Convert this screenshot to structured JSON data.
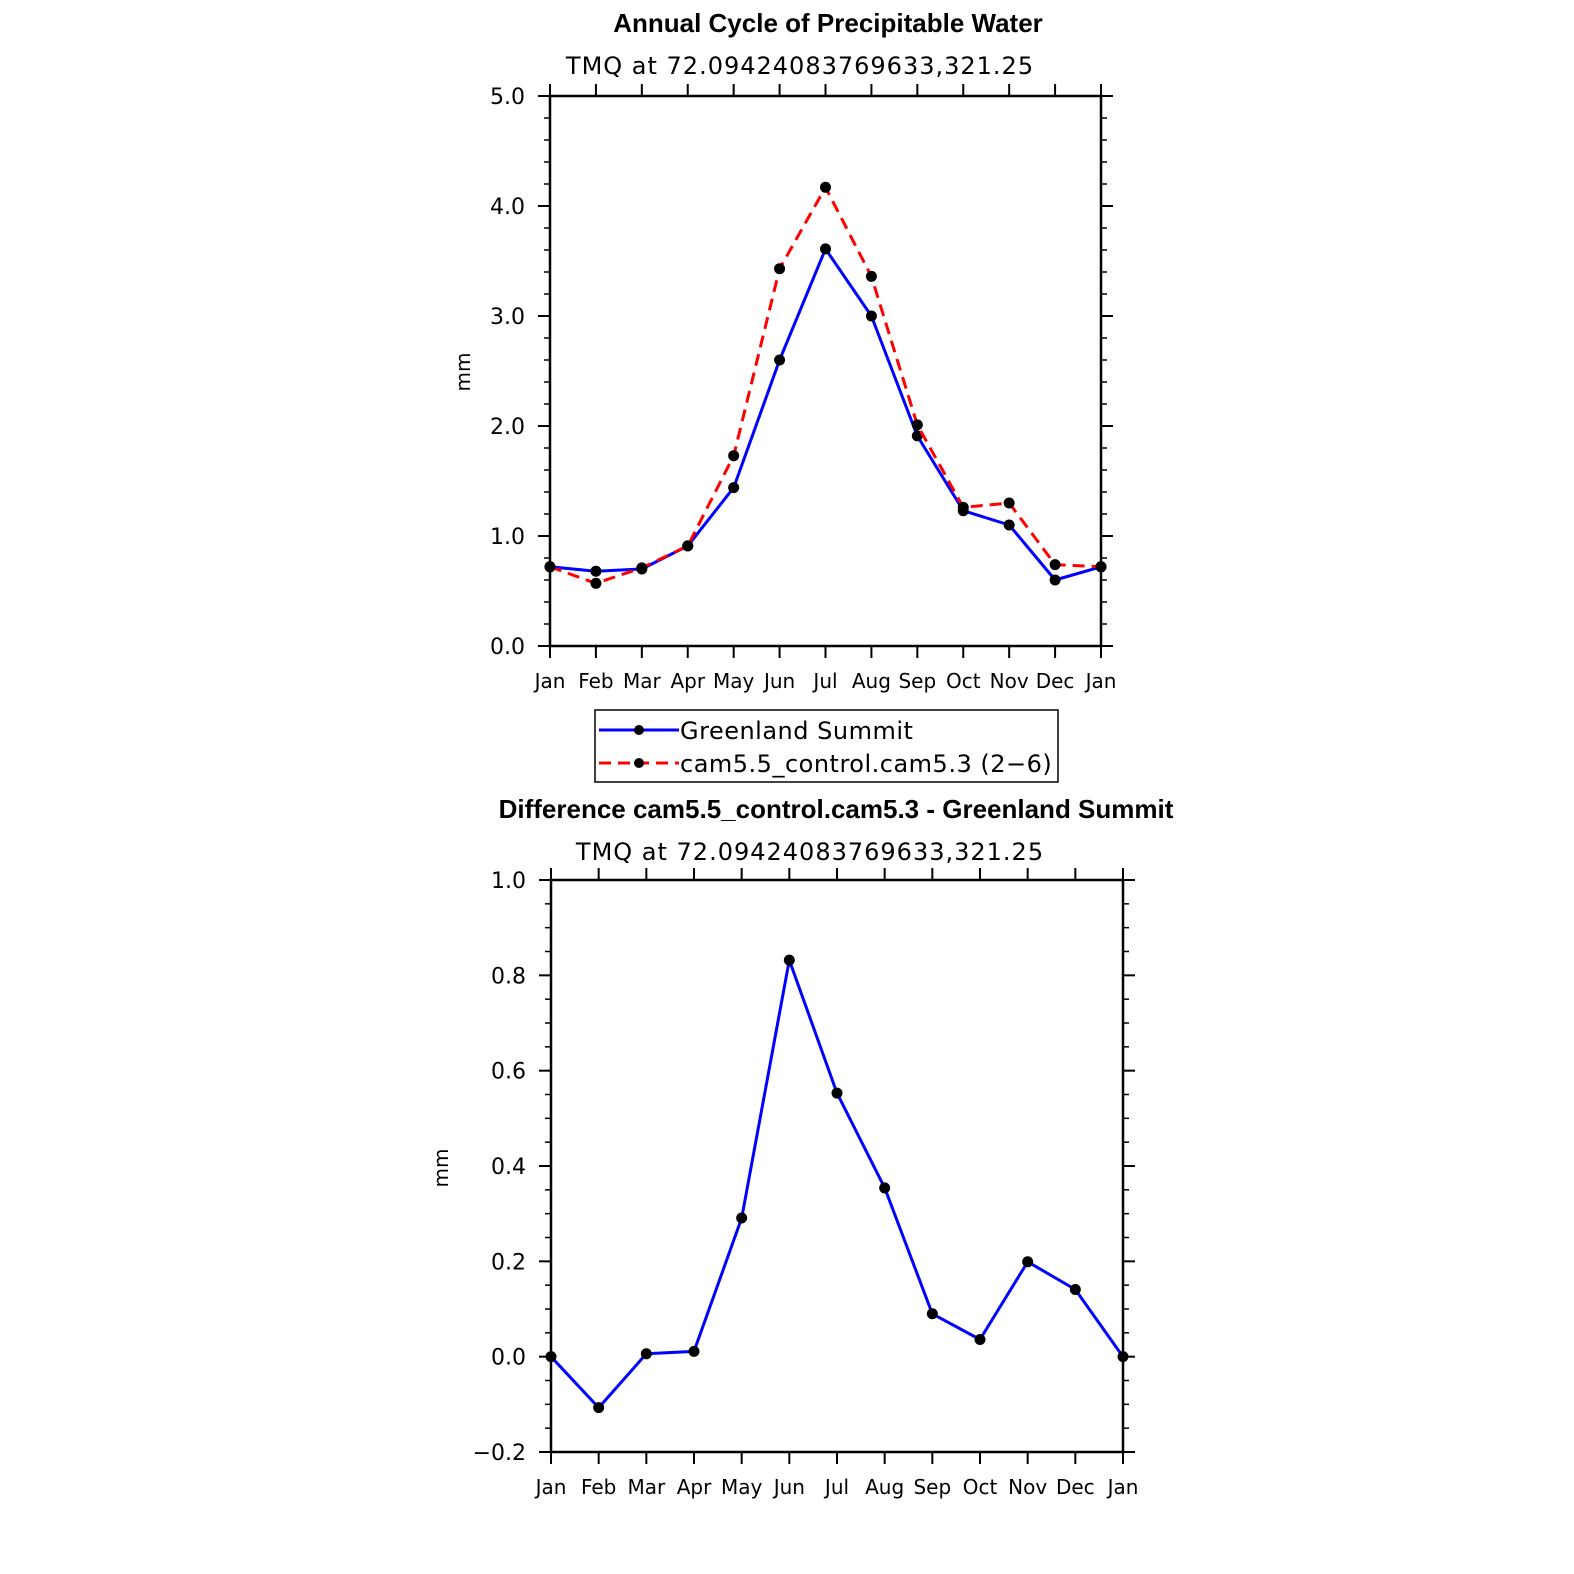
{
  "chart_data": [
    {
      "type": "line",
      "title": "Annual Cycle of Precipitable Water",
      "subtitle": "TMQ  at  72.09424083769633,321.25",
      "xlabel": "",
      "ylabel": "mm",
      "ylim": [
        0.0,
        5.0
      ],
      "yticks": [
        "0.0",
        "1.0",
        "2.0",
        "3.0",
        "4.0",
        "5.0"
      ],
      "categories": [
        "Jan",
        "Feb",
        "Mar",
        "Apr",
        "May",
        "Jun",
        "Jul",
        "Aug",
        "Sep",
        "Oct",
        "Nov",
        "Dec",
        "Jan"
      ],
      "series": [
        {
          "name": "Greenland Summit",
          "color": "#0000ff",
          "dash": "solid",
          "values": [
            0.72,
            0.68,
            0.7,
            0.91,
            1.44,
            2.6,
            3.61,
            3.0,
            1.91,
            1.23,
            1.1,
            0.6,
            0.72
          ]
        },
        {
          "name": "cam5.5_control.cam5.3 (2−6)",
          "color": "#ff0000",
          "dash": "dashed",
          "values": [
            0.72,
            0.57,
            0.71,
            0.91,
            1.73,
            3.43,
            4.17,
            3.36,
            2.01,
            1.26,
            1.3,
            0.74,
            0.72
          ]
        }
      ],
      "legend": [
        "Greenland Summit",
        "cam5.5_control.cam5.3 (2−6)"
      ]
    },
    {
      "type": "line",
      "title": "Difference cam5.5_control.cam5.3 - Greenland Summit",
      "subtitle": "TMQ  at  72.09424083769633,321.25",
      "xlabel": "",
      "ylabel": "mm",
      "ylim": [
        -0.2,
        1.0
      ],
      "yticks": [
        "−0.2",
        "0.0",
        "0.2",
        "0.4",
        "0.6",
        "0.8",
        "1.0"
      ],
      "categories": [
        "Jan",
        "Feb",
        "Mar",
        "Apr",
        "May",
        "Jun",
        "Jul",
        "Aug",
        "Sep",
        "Oct",
        "Nov",
        "Dec",
        "Jan"
      ],
      "series": [
        {
          "name": "Difference",
          "color": "#0000ff",
          "dash": "solid",
          "values": [
            0.0,
            -0.107,
            0.006,
            0.011,
            0.291,
            0.832,
            0.553,
            0.354,
            0.09,
            0.036,
            0.199,
            0.141,
            0.0
          ]
        }
      ]
    }
  ]
}
